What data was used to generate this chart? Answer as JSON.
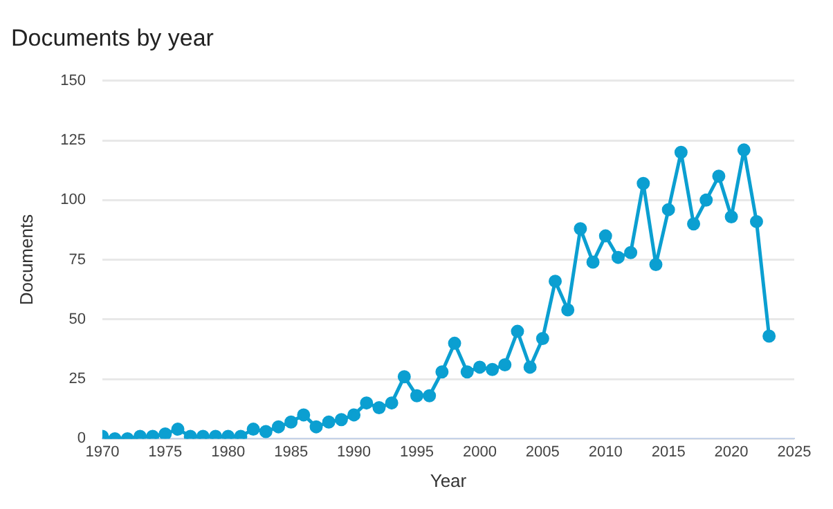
{
  "chart_data": {
    "type": "line",
    "title": "Documents by year",
    "xlabel": "Year",
    "ylabel": "Documents",
    "x": [
      1970,
      1971,
      1972,
      1973,
      1974,
      1975,
      1976,
      1977,
      1978,
      1979,
      1980,
      1981,
      1982,
      1983,
      1984,
      1985,
      1986,
      1987,
      1988,
      1989,
      1990,
      1991,
      1992,
      1993,
      1994,
      1995,
      1996,
      1997,
      1998,
      1999,
      2000,
      2001,
      2002,
      2003,
      2004,
      2005,
      2006,
      2007,
      2008,
      2009,
      2010,
      2011,
      2012,
      2013,
      2014,
      2015,
      2016,
      2017,
      2018,
      2019,
      2020,
      2021,
      2022,
      2023
    ],
    "series": [
      {
        "color": "#0b9fd1",
        "values": [
          1,
          0,
          0,
          1,
          1,
          2,
          4,
          1,
          1,
          1,
          1,
          1,
          4,
          3,
          5,
          7,
          10,
          5,
          7,
          8,
          10,
          15,
          13,
          15,
          26,
          18,
          18,
          28,
          40,
          28,
          30,
          29,
          31,
          45,
          30,
          42,
          66,
          54,
          88,
          74,
          85,
          76,
          78,
          107,
          73,
          96,
          120,
          90,
          100,
          110,
          93,
          121,
          91,
          43
        ]
      }
    ],
    "xlim": [
      1970,
      2025
    ],
    "xticks": [
      1970,
      1975,
      1980,
      1985,
      1990,
      1995,
      2000,
      2005,
      2010,
      2015,
      2020,
      2025
    ],
    "ylim": [
      0,
      150
    ],
    "yticks": [
      0,
      25,
      50,
      75,
      100,
      125,
      150
    ],
    "grid": "y",
    "legend": false,
    "marker": "circle",
    "line_style": "solid"
  }
}
